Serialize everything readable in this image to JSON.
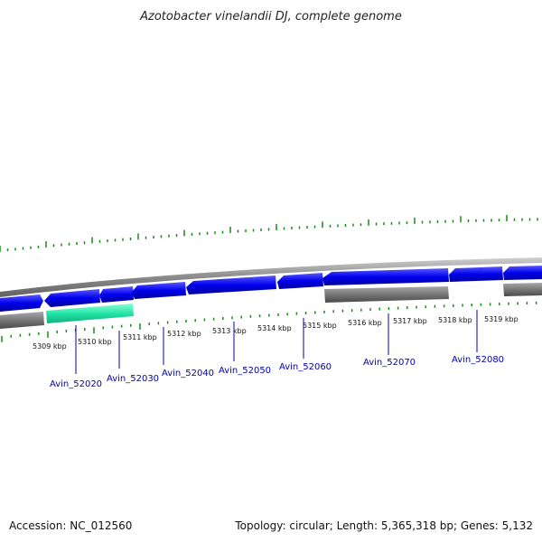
{
  "title": "Azotobacter vinelandii DJ, complete genome",
  "footer": {
    "accession": "Accession: NC_012560",
    "summary": "Topology: circular; Length: 5,365,318 bp; Genes: 5,132"
  },
  "colors": {
    "forward_gene": "#0000ee",
    "reverse_gene": "#6e6e6e",
    "highlight_gene": "#22e6a6",
    "backbone": "#8a8a8a",
    "ticks": "#1a8a1a",
    "label": "#0000b0"
  },
  "ruler": {
    "ticks": [
      "5309 kbp",
      "5310 kbp",
      "5311 kbp",
      "5312 kbp",
      "5313 kbp",
      "5314 kbp",
      "5315 kbp",
      "5316 kbp",
      "5317 kbp",
      "5318 kbp",
      "5319 kbp"
    ]
  },
  "genes": [
    {
      "name": "Avin_52020",
      "strand": "reverse",
      "highlight": true
    },
    {
      "name": "Avin_52030",
      "strand": "forward"
    },
    {
      "name": "Avin_52040",
      "strand": "forward"
    },
    {
      "name": "Avin_52050",
      "strand": "forward"
    },
    {
      "name": "Avin_52060",
      "strand": "forward"
    },
    {
      "name": "Avin_52070",
      "strand": "forward"
    },
    {
      "name": "Avin_52080",
      "strand": "forward"
    }
  ]
}
